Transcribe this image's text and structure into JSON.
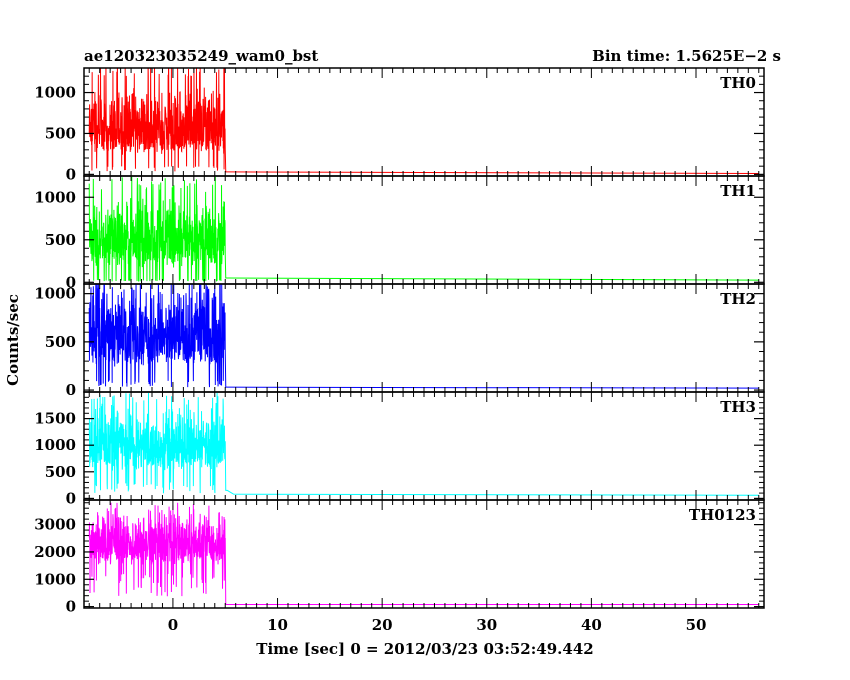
{
  "header": {
    "obs_id": "ae120323035249_wam0_bst",
    "bin_time": "Bin time: 1.5625E−2 s"
  },
  "axes": {
    "ylabel": "Counts/sec",
    "xlabel": "Time [sec] 0 = 2012/03/23 03:52:49.442"
  },
  "chart_data": {
    "type": "line",
    "shared_x": {
      "range": [
        -8.5,
        56.5
      ],
      "major_ticks": [
        0,
        10,
        20,
        30,
        40,
        50
      ],
      "tick_labels": [
        "0",
        "10",
        "20",
        "30",
        "40",
        "50"
      ],
      "minor_step": 1
    },
    "burst_interval": [
      -8.0,
      5.0
    ],
    "panels": [
      {
        "name": "TH0",
        "color": "#ff0000",
        "ylim": [
          -20,
          1300
        ],
        "yticks": [
          0,
          500,
          1000
        ],
        "ytick_labels": [
          "0",
          "500",
          "1000"
        ],
        "burst_low": 100,
        "burst_mean": 650,
        "burst_high": 1100,
        "burst_peak": 1400,
        "after": [
          [
            5.2,
            30
          ],
          [
            56.0,
            10
          ]
        ]
      },
      {
        "name": "TH1",
        "color": "#00ff00",
        "ylim": [
          -20,
          1250
        ],
        "yticks": [
          0,
          500,
          1000
        ],
        "ytick_labels": [
          "0",
          "500",
          "1000"
        ],
        "burst_low": 30,
        "burst_mean": 550,
        "burst_high": 1050,
        "burst_peak": 1250,
        "after": [
          [
            5.2,
            50
          ],
          [
            56.0,
            25
          ]
        ]
      },
      {
        "name": "TH2",
        "color": "#0000ff",
        "ylim": [
          -20,
          1100
        ],
        "yticks": [
          0,
          500,
          1000
        ],
        "ytick_labels": [
          "0",
          "500",
          "1000"
        ],
        "burst_low": 100,
        "burst_mean": 650,
        "burst_high": 1100,
        "burst_peak": 1200,
        "after": [
          [
            5.2,
            30
          ],
          [
            56.0,
            20
          ]
        ]
      },
      {
        "name": "TH3",
        "color": "#00ffff",
        "ylim": [
          -30,
          2000
        ],
        "yticks": [
          0,
          500,
          1000,
          1500
        ],
        "ytick_labels": [
          "0",
          "500",
          "1000",
          "1500"
        ],
        "burst_low": 300,
        "burst_mean": 1000,
        "burst_high": 1800,
        "burst_peak": 2000,
        "after": [
          [
            5.2,
            150
          ],
          [
            5.8,
            80
          ],
          [
            56.0,
            60
          ]
        ]
      },
      {
        "name": "TH0123",
        "color": "#ff00ff",
        "ylim": [
          -50,
          3900
        ],
        "yticks": [
          0,
          1000,
          2000,
          3000
        ],
        "ytick_labels": [
          "0",
          "1000",
          "2000",
          "3000"
        ],
        "burst_low": 1200,
        "burst_mean": 2300,
        "burst_high": 3500,
        "burst_peak": 3800,
        "after": [
          [
            5.2,
            80
          ],
          [
            56.0,
            80
          ]
        ]
      }
    ]
  }
}
